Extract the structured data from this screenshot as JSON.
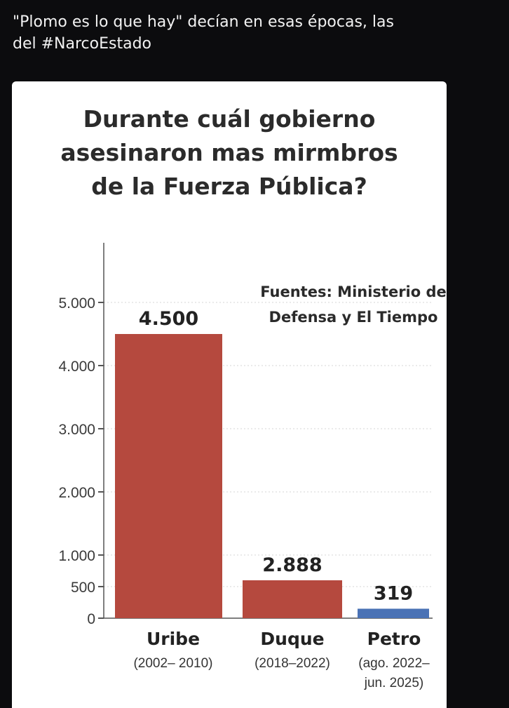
{
  "post": {
    "lines": [
      "\"Plomo es lo que hay\" decían en esas épocas, las",
      "del #NarcoEstado"
    ]
  },
  "chart_data": {
    "type": "bar",
    "title_lines": [
      "Durante cuál gobierno",
      "asesinaron mas mirmbros",
      "de la Fuerza Pública?"
    ],
    "annotation_lines": [
      "Fuentes: Ministerio de",
      "Defensa y El Tiempo"
    ],
    "categories": [
      "Uribe",
      "Duque",
      "Petro"
    ],
    "category_sublabels": [
      [
        "(2002– 2010)"
      ],
      [
        "(2018–2022)"
      ],
      [
        "(ago. 2022–",
        "jun. 2025)"
      ]
    ],
    "values": [
      4500,
      2888,
      319
    ],
    "value_labels": [
      "4.500",
      "2.888",
      "319"
    ],
    "bar_heights_on_axis": [
      4500,
      600,
      150
    ],
    "colors": [
      "#b5493e",
      "#b5493e",
      "#4a72b5"
    ],
    "yticks": [
      0,
      500,
      1000,
      2000,
      3000,
      4000,
      5000
    ],
    "ytick_labels": [
      "0",
      "500",
      "1.000",
      "2.000",
      "3.000",
      "4.000",
      "5.000"
    ],
    "ylim": [
      0,
      5000
    ],
    "grid": true,
    "xlabel": "",
    "ylabel": ""
  }
}
